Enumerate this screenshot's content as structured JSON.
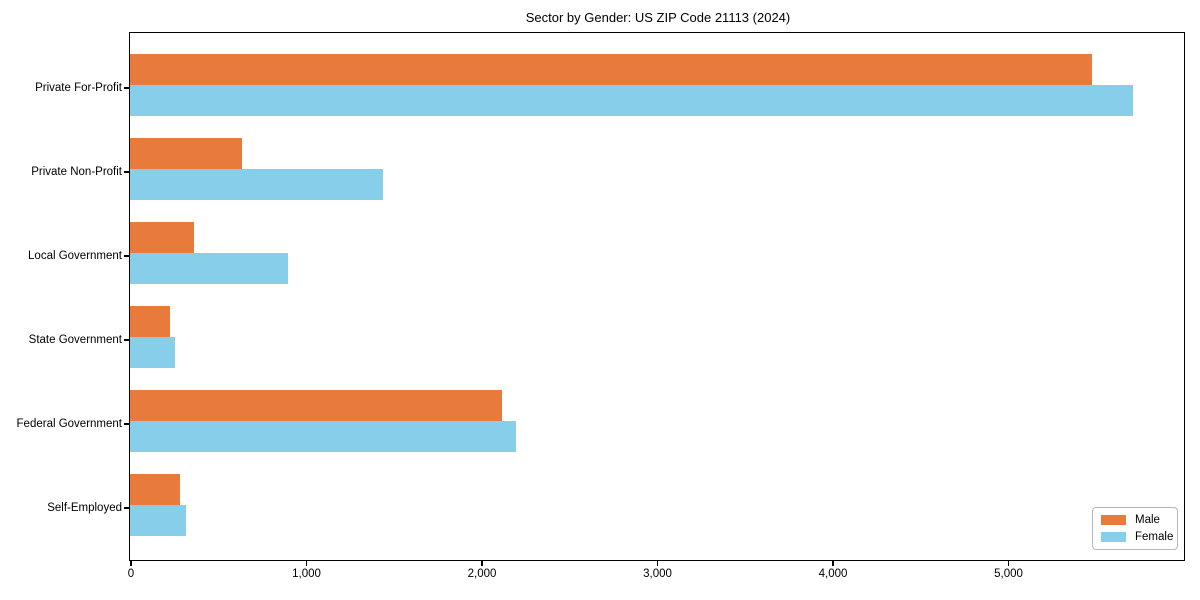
{
  "figure": {
    "title": "Sector by Gender: US ZIP Code 21113 (2024)"
  },
  "chart_data": {
    "type": "bar",
    "orientation": "horizontal",
    "title": "Sector by Gender: US ZIP Code 21113 (2024)",
    "categories": [
      "Private For-Profit",
      "Private Non-Profit",
      "Local Government",
      "State Government",
      "Federal Government",
      "Self-Employed"
    ],
    "series": [
      {
        "name": "Male",
        "color": "#e87a3c",
        "values": [
          5475,
          640,
          365,
          225,
          2120,
          285
        ]
      },
      {
        "name": "Female",
        "color": "#87ceeb",
        "values": [
          5710,
          1440,
          900,
          255,
          2200,
          320
        ]
      }
    ],
    "xlabel": "",
    "ylabel": "",
    "xlim": [
      0,
      6000
    ],
    "xticks": [
      0,
      1000,
      2000,
      3000,
      4000,
      5000
    ],
    "xtick_labels": [
      "0",
      "1,000",
      "2,000",
      "3,000",
      "4,000",
      "5,000"
    ],
    "grid": false,
    "legend": {
      "position": "lower right",
      "entries": [
        "Male",
        "Female"
      ]
    },
    "colors": {
      "axis": "#000000",
      "background": "#ffffff",
      "legend_border": "#b7b7b7"
    }
  }
}
